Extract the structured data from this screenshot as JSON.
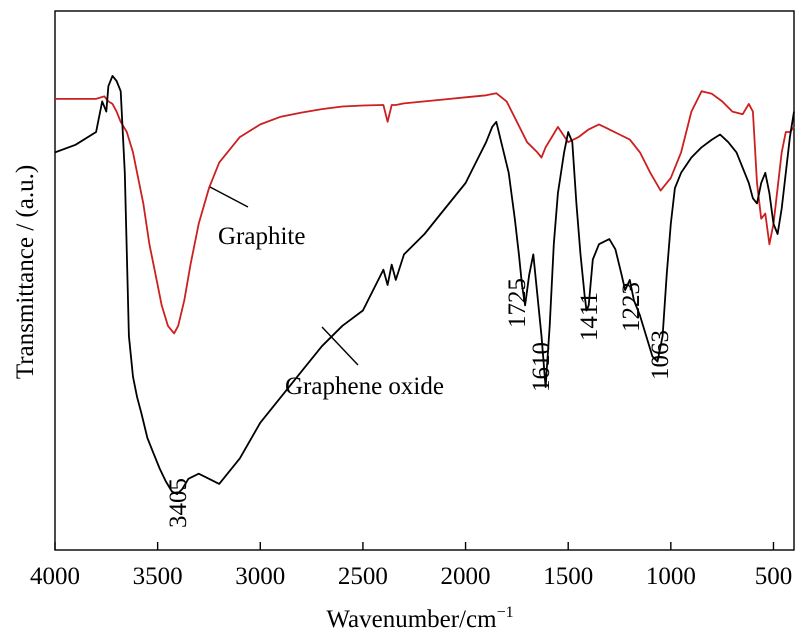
{
  "chart_data": {
    "type": "line",
    "xlabel": "Wavenumber/cm",
    "xlabel_sup": "−1",
    "ylabel": "Transmittance / (a.u.)",
    "xlim": [
      4000,
      400
    ],
    "ylim": [
      0,
      100
    ],
    "x_ticks": [
      4000,
      3500,
      3000,
      2500,
      2000,
      1500,
      1000,
      500
    ],
    "x_tick_labels": [
      "4000",
      "3500",
      "3000",
      "2500",
      "2000",
      "1500",
      "1000",
      "500"
    ],
    "y_ticks_shown": false,
    "grid": false,
    "colors": {
      "graphite": "#cc1f1f",
      "graphene_oxide": "#000000"
    },
    "series": [
      {
        "name": "Graphite",
        "x": [
          4000,
          3900,
          3800,
          3760,
          3740,
          3720,
          3700,
          3680,
          3650,
          3620,
          3600,
          3570,
          3540,
          3510,
          3480,
          3450,
          3420,
          3400,
          3370,
          3340,
          3300,
          3250,
          3200,
          3100,
          3000,
          2900,
          2800,
          2700,
          2600,
          2500,
          2400,
          2380,
          2360,
          2340,
          2300,
          2200,
          2100,
          2000,
          1900,
          1850,
          1800,
          1750,
          1700,
          1650,
          1630,
          1610,
          1580,
          1550,
          1500,
          1450,
          1400,
          1350,
          1300,
          1250,
          1200,
          1150,
          1100,
          1050,
          1000,
          950,
          900,
          850,
          800,
          750,
          700,
          650,
          620,
          600,
          580,
          560,
          540,
          520,
          500,
          480,
          460,
          440,
          420,
          400
        ],
        "y": [
          86.5,
          86.5,
          86.5,
          87,
          86,
          85.5,
          84,
          82,
          80,
          76,
          72,
          66,
          58,
          52,
          46,
          42,
          40.5,
          42,
          47,
          54,
          62,
          69,
          74,
          79,
          81.5,
          83,
          83.8,
          84.5,
          85,
          85.2,
          85.3,
          82,
          85.3,
          85.3,
          85.6,
          86,
          86.4,
          86.8,
          87.2,
          87.6,
          86,
          82,
          78,
          76,
          75,
          77,
          79,
          81,
          78,
          79,
          80.5,
          81.5,
          80.5,
          79.5,
          78.5,
          76,
          72,
          68.5,
          71,
          76,
          84,
          88,
          87.5,
          86,
          84,
          83.5,
          85.5,
          84,
          70,
          63,
          64,
          58,
          62,
          69,
          76,
          80,
          80,
          81
        ]
      },
      {
        "name": "Graphene oxide",
        "x": [
          4000,
          3900,
          3800,
          3770,
          3750,
          3740,
          3720,
          3700,
          3680,
          3660,
          3640,
          3620,
          3600,
          3580,
          3550,
          3520,
          3490,
          3460,
          3430,
          3405,
          3380,
          3350,
          3300,
          3250,
          3200,
          3100,
          3000,
          2900,
          2800,
          2700,
          2600,
          2500,
          2400,
          2380,
          2360,
          2340,
          2300,
          2200,
          2100,
          2000,
          1950,
          1900,
          1870,
          1850,
          1820,
          1790,
          1760,
          1740,
          1725,
          1710,
          1690,
          1670,
          1650,
          1630,
          1610,
          1590,
          1570,
          1550,
          1520,
          1500,
          1480,
          1460,
          1440,
          1420,
          1411,
          1400,
          1380,
          1350,
          1300,
          1270,
          1240,
          1223,
          1200,
          1180,
          1150,
          1120,
          1090,
          1065,
          1040,
          1020,
          1000,
          980,
          950,
          900,
          850,
          800,
          760,
          720,
          680,
          640,
          620,
          600,
          580,
          560,
          540,
          520,
          500,
          480,
          460,
          440,
          420,
          400
        ],
        "y": [
          76,
          77.5,
          80,
          86,
          84,
          89,
          91,
          90,
          88,
          72,
          40,
          32,
          28,
          25,
          20,
          17,
          14,
          11.5,
          9.5,
          9,
          10,
          12,
          13,
          12,
          11,
          16,
          23,
          28,
          33,
          38,
          42,
          45,
          53,
          50,
          54,
          51,
          56,
          60,
          65,
          70,
          74,
          78,
          81,
          82,
          77,
          72,
          63,
          56,
          50,
          46,
          52,
          56,
          48,
          40,
          30,
          42,
          58,
          68,
          76,
          80,
          78,
          66,
          56,
          48,
          45,
          46,
          55,
          58,
          59,
          57,
          52,
          49,
          51,
          47,
          44,
          40,
          36,
          35,
          40,
          52,
          62,
          69,
          72,
          75,
          77,
          78.5,
          79.5,
          78,
          76,
          72,
          70,
          67,
          66,
          70,
          72,
          68,
          62,
          60,
          65,
          72,
          79,
          84
        ]
      }
    ],
    "annotations": {
      "graphite": "Graphite",
      "graphene_oxide": "Graphene oxide",
      "peaks": [
        {
          "label": "3405",
          "x": 3405
        },
        {
          "label": "1725",
          "x": 1725
        },
        {
          "label": "1610",
          "x": 1610
        },
        {
          "label": "1411",
          "x": 1411
        },
        {
          "label": "1223",
          "x": 1223
        },
        {
          "label": "1063",
          "x": 1063
        }
      ]
    }
  }
}
